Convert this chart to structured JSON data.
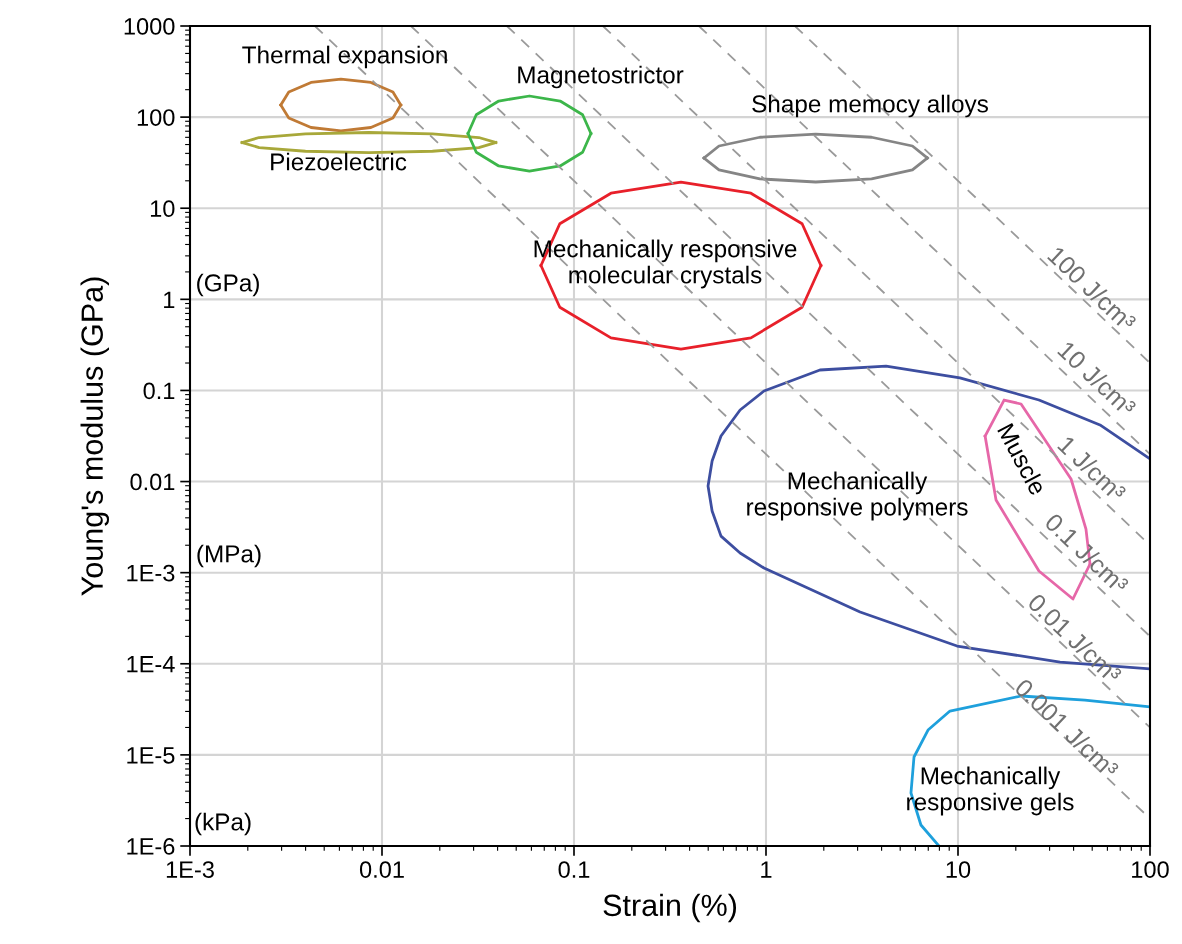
{
  "chart_data": {
    "type": "line",
    "xlabel": "Strain (%)",
    "ylabel": "Young's modulus (GPa)",
    "log": "xy",
    "grid": true,
    "marker": "none",
    "xlim": [
      0.001,
      100
    ],
    "ylim": [
      1e-06,
      1000
    ],
    "xticks": [
      {
        "value": 0.001,
        "label": "1E-3"
      },
      0.01,
      0.1,
      1,
      10,
      100
    ],
    "yticks": [
      {
        "value": 1e-06,
        "label": "1E-6"
      },
      {
        "value": 1e-05,
        "label": "1E-5"
      },
      {
        "value": 0.0001,
        "label": "1E-4"
      },
      {
        "value": 0.001,
        "label": "1E-3"
      },
      0.01,
      0.1,
      1,
      10,
      100,
      1000
    ],
    "series": [
      {
        "color": "#c07a35",
        "line_style": "solid",
        "x": [
          0.00297,
          0.00327,
          0.00427,
          0.00611,
          0.00875,
          0.0114,
          0.01253
        ],
        "values": [
          135.8,
          188.8,
          239.9,
          261.8,
          239.9,
          188.8,
          135.8
        ]
      },
      {
        "color": "#c07a35",
        "line_style": "solid",
        "x": [
          0.00297,
          0.00327,
          0.00427,
          0.00611,
          0.00875,
          0.0114,
          0.01253
        ],
        "values": [
          135.8,
          97.9,
          76.9,
          70.5,
          76.9,
          97.9,
          135.8
        ]
      },
      {
        "color": "#a8a83a",
        "line_style": "solid",
        "x": [
          0.001866,
          0.002291,
          0.003995,
          0.00855,
          0.01831,
          0.03192,
          0.03917
        ],
        "values": [
          52.6,
          59.7,
          65.5,
          67.8,
          65.5,
          59.7,
          52.6
        ]
      },
      {
        "color": "#a8a83a",
        "line_style": "solid",
        "x": [
          0.001866,
          0.002291,
          0.003995,
          0.00855,
          0.01831,
          0.03192,
          0.03917
        ],
        "values": [
          52.6,
          46.3,
          42.2,
          40.8,
          42.2,
          46.3,
          52.6
        ]
      },
      {
        "color": "#3cb64a",
        "line_style": "solid",
        "x": [
          0.02805,
          0.03097,
          0.04055,
          0.0586,
          0.0847,
          0.1109,
          0.1225
        ],
        "values": [
          66.1,
          106.1,
          150.2,
          170.5,
          150.2,
          106.1,
          66.1
        ]
      },
      {
        "color": "#3cb64a",
        "line_style": "solid",
        "x": [
          0.02805,
          0.03097,
          0.04055,
          0.0586,
          0.0847,
          0.1109,
          0.1225
        ],
        "values": [
          66.1,
          41.1,
          29.1,
          25.6,
          29.1,
          41.1,
          66.1
        ]
      },
      {
        "color": "#858585",
        "line_style": "solid",
        "x": [
          0.475,
          0.569,
          0.929,
          1.816,
          3.548,
          5.79,
          6.93
        ],
        "values": [
          35.6,
          48.2,
          60.1,
          65.2,
          60.1,
          48.2,
          35.6
        ]
      },
      {
        "color": "#858585",
        "line_style": "solid",
        "x": [
          0.475,
          0.569,
          0.929,
          1.816,
          3.548,
          5.79,
          6.93
        ],
        "values": [
          35.6,
          26.3,
          21.0,
          19.4,
          21.0,
          26.3,
          35.6
        ]
      },
      {
        "color": "#e8202a",
        "line_style": "solid",
        "x": [
          0.0673,
          0.08433,
          0.1558,
          0.3606,
          0.8344,
          1.542,
          1.932
        ],
        "values": [
          2.35,
          6.75,
          14.62,
          19.39,
          14.62,
          6.75,
          2.35
        ]
      },
      {
        "color": "#e8202a",
        "line_style": "solid",
        "x": [
          0.0673,
          0.08433,
          0.1558,
          0.3606,
          0.8344,
          1.542,
          1.932
        ],
        "values": [
          2.35,
          0.818,
          0.3776,
          0.2846,
          0.3776,
          0.818,
          2.35
        ]
      },
      {
        "color": "#3d4ea0",
        "line_style": "solid",
        "x": [
          100,
          54.9,
          26.4,
          10.23,
          4.22,
          1.91,
          0.976,
          0.733,
          0.583,
          0.524,
          0.499,
          0.524,
          0.583,
          0.733,
          0.976,
          3.09,
          9.89,
          34.0,
          100
        ],
        "values": [
          0.0177,
          0.0418,
          0.0785,
          0.1371,
          0.1854,
          0.1676,
          0.0986,
          0.061,
          0.0316,
          0.01683,
          0.00893,
          0.00475,
          0.00252,
          0.001644,
          0.001125,
          0.00037,
          0.0001567,
          0.0001045,
          8.77e-05
        ]
      },
      {
        "color": "#e667a8",
        "line_style": "solid",
        "x": [
          13.84,
          17.38,
          21.3,
          38.8,
          46.4,
          48.7
        ],
        "values": [
          0.0316,
          0.0785,
          0.071,
          0.01067,
          0.00301,
          0.001245
        ]
      },
      {
        "color": "#e667a8",
        "line_style": "solid",
        "x": [
          13.84,
          15.78,
          26.4,
          39.7,
          48.7
        ],
        "values": [
          0.0316,
          0.00627,
          0.001042,
          0.000514,
          0.001245
        ]
      },
      {
        "color": "#1ea0dc",
        "line_style": "solid",
        "x": [
          100,
          45.8,
          21.3,
          9.08,
          6.98,
          5.9,
          5.69,
          6.41,
          7.96
        ],
        "values": [
          3.36e-05,
          4e-05,
          4.43e-05,
          3.03e-05,
          1.875e-05,
          9.48e-06,
          3.82e-06,
          1.7e-06,
          1e-06
        ]
      },
      {
        "color": "#9a9a9a",
        "line_style": "dashed",
        "x": [
          1.414,
          100
        ],
        "values": [
          1000,
          0.2
        ]
      },
      {
        "color": "#9a9a9a",
        "line_style": "dashed",
        "x": [
          0.447,
          100
        ],
        "values": [
          1000,
          0.02
        ]
      },
      {
        "color": "#9a9a9a",
        "line_style": "dashed",
        "x": [
          0.1414,
          100
        ],
        "values": [
          1000,
          0.002
        ]
      },
      {
        "color": "#9a9a9a",
        "line_style": "dashed",
        "x": [
          0.0447,
          100
        ],
        "values": [
          1000,
          0.0002
        ]
      },
      {
        "color": "#9a9a9a",
        "line_style": "dashed",
        "x": [
          0.01414,
          100
        ],
        "values": [
          1000,
          2e-05
        ]
      },
      {
        "color": "#9a9a9a",
        "line_style": "dashed",
        "x": [
          0.00447,
          100
        ],
        "values": [
          1000,
          2e-06
        ]
      }
    ],
    "annotations": [
      "Thermal expansion",
      "Magnetostrictor",
      "Shape memocy alloys",
      "Piezoelectric",
      "Mechanically responsive\nmolecular crystals",
      "Mechanically\nresponsive polymers",
      "Muscle",
      "Mechanically\nresponsive gels",
      "(GPa)",
      "(MPa)",
      "(kPa)",
      "100 J/cm³",
      "10 J/cm³",
      "1 J/cm³",
      "0.1 J/cm³",
      "0.01 J/cm³",
      "0.001 J/cm³"
    ]
  }
}
